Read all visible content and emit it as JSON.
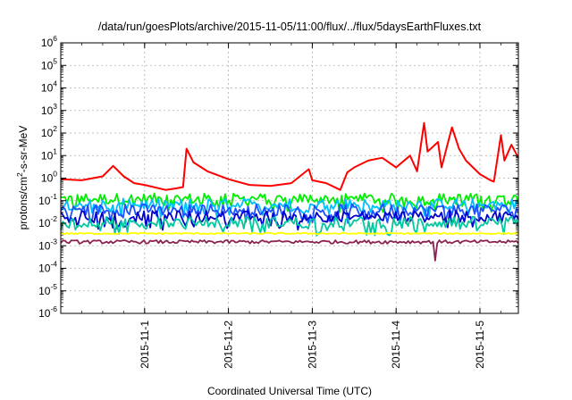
{
  "chart_data": {
    "type": "line",
    "title": "/data/run/goesPlots/archive/2015-11-05/11:00/flux/../flux/5daysEarthFluxes.txt",
    "xlabel": "Coordinated Universal Time (UTC)",
    "ylabel": "protons/cm²-s-sr-MeV",
    "y_scale": "log",
    "ylim_exponent": [
      -6,
      6
    ],
    "x_range_days": [
      "2015-10-31 00:00",
      "2015-11-05 11:00"
    ],
    "x_ticks": [
      "2015-11-1",
      "2015-11-2",
      "2015-11-3",
      "2015-11-4",
      "2015-11-5"
    ],
    "y_ticks": [
      "10^-6",
      "10^-5",
      "10^-4",
      "10^-3",
      "10^-2",
      "10^-1",
      "10^0",
      "10^1",
      "10^2",
      "10^3",
      "10^4",
      "10^5",
      "10^6"
    ],
    "grid": true,
    "legend": "none",
    "series": [
      {
        "color": "#ff0000",
        "values": [
          [
            "2015-10-31 00:00",
            0.9
          ],
          [
            "2015-10-31 06:00",
            0.8
          ],
          [
            "2015-10-31 12:00",
            1.2
          ],
          [
            "2015-10-31 15:00",
            3.5
          ],
          [
            "2015-10-31 18:00",
            1.2
          ],
          [
            "2015-10-31 21:00",
            0.6
          ],
          [
            "2015-11-01 00:00",
            0.5
          ],
          [
            "2015-11-01 06:00",
            0.3
          ],
          [
            "2015-11-01 09:00",
            0.35
          ],
          [
            "2015-11-01 11:00",
            0.4
          ],
          [
            "2015-11-01 12:00",
            20
          ],
          [
            "2015-11-01 14:00",
            5
          ],
          [
            "2015-11-01 18:00",
            2
          ],
          [
            "2015-11-02 00:00",
            0.9
          ],
          [
            "2015-11-02 06:00",
            0.5
          ],
          [
            "2015-11-02 12:00",
            0.45
          ],
          [
            "2015-11-02 18:00",
            0.6
          ],
          [
            "2015-11-02 23:00",
            2.5
          ],
          [
            "2015-11-03 00:00",
            0.8
          ],
          [
            "2015-11-03 04:00",
            0.6
          ],
          [
            "2015-11-03 08:00",
            0.3
          ],
          [
            "2015-11-03 10:00",
            1.8
          ],
          [
            "2015-11-03 12:00",
            3
          ],
          [
            "2015-11-03 16:00",
            6
          ],
          [
            "2015-11-03 20:00",
            8
          ],
          [
            "2015-11-04 00:00",
            3
          ],
          [
            "2015-11-04 04:00",
            10
          ],
          [
            "2015-11-04 06:00",
            2
          ],
          [
            "2015-11-04 08:00",
            280
          ],
          [
            "2015-11-04 09:00",
            15
          ],
          [
            "2015-11-04 12:00",
            40
          ],
          [
            "2015-11-04 13:00",
            3
          ],
          [
            "2015-11-04 16:00",
            180
          ],
          [
            "2015-11-04 18:00",
            20
          ],
          [
            "2015-11-04 20:00",
            6
          ],
          [
            "2015-11-05 00:00",
            1.5
          ],
          [
            "2015-11-05 03:00",
            0.8
          ],
          [
            "2015-11-05 04:00",
            0.7
          ],
          [
            "2015-11-05 06:00",
            80
          ],
          [
            "2015-11-05 07:00",
            6
          ],
          [
            "2015-11-05 09:00",
            30
          ],
          [
            "2015-11-05 11:00",
            8
          ]
        ]
      },
      {
        "color": "#00ee00",
        "typical_value": 0.12
      },
      {
        "color": "#00bfff",
        "typical_value": 0.07
      },
      {
        "color": "#1e50ff",
        "typical_value": 0.04
      },
      {
        "color": "#0000cc",
        "typical_value": 0.02
      },
      {
        "color": "#00c8a0",
        "typical_value": 0.011
      },
      {
        "color": "#ffff00",
        "typical_value": 0.0035
      },
      {
        "color": "#8b2252",
        "typical_value": 0.0015,
        "min_value": 0.00022
      }
    ]
  }
}
